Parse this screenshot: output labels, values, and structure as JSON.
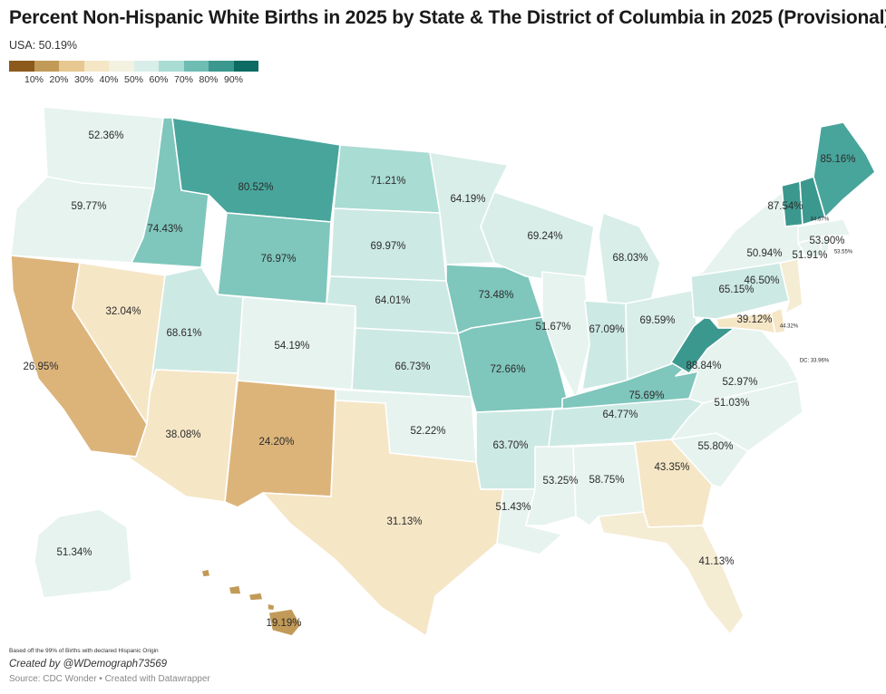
{
  "title": "Percent Non-Hispanic White Births in 2025 by State & The District of Columbia in 2025 (Provisional)",
  "subtitle": "USA: 50.19%",
  "legend": {
    "colors": [
      "#8c5a1c",
      "#c29a58",
      "#e6c890",
      "#f5e6c6",
      "#f3f1e0",
      "#d9eee8",
      "#a9dcd3",
      "#6ebcb2",
      "#3b988e",
      "#0c6b62"
    ],
    "ticks": [
      "10%",
      "20%",
      "30%",
      "40%",
      "50%",
      "60%",
      "70%",
      "80%",
      "90%"
    ]
  },
  "states": [
    {
      "id": "WA",
      "value": "52.36%",
      "color": "#e6f3ee"
    },
    {
      "id": "OR",
      "value": "59.77%",
      "color": "#e6f3ee"
    },
    {
      "id": "CA",
      "value": "26.95%",
      "color": "#dcb47a"
    },
    {
      "id": "NV",
      "value": "32.04%",
      "color": "#f5e6c6"
    },
    {
      "id": "ID",
      "value": "74.43%",
      "color": "#7fc6bc"
    },
    {
      "id": "MT",
      "value": "80.52%",
      "color": "#48a59b"
    },
    {
      "id": "WY",
      "value": "76.97%",
      "color": "#7fc6bc"
    },
    {
      "id": "UT",
      "value": "68.61%",
      "color": "#cde9e3"
    },
    {
      "id": "AZ",
      "value": "38.08%",
      "color": "#f5e6c6"
    },
    {
      "id": "CO",
      "value": "54.19%",
      "color": "#e6f3ee"
    },
    {
      "id": "NM",
      "value": "24.20%",
      "color": "#dcb47a"
    },
    {
      "id": "ND",
      "value": "71.21%",
      "color": "#a9dcd3"
    },
    {
      "id": "SD",
      "value": "69.97%",
      "color": "#cde9e3"
    },
    {
      "id": "NE",
      "value": "64.01%",
      "color": "#cde9e3"
    },
    {
      "id": "KS",
      "value": "66.73%",
      "color": "#cde9e3"
    },
    {
      "id": "OK",
      "value": "52.22%",
      "color": "#e6f3ee"
    },
    {
      "id": "TX",
      "value": "31.13%",
      "color": "#f5e6c6"
    },
    {
      "id": "MN",
      "value": "64.19%",
      "color": "#d9eee8"
    },
    {
      "id": "IA",
      "value": "73.48%",
      "color": "#7fc6bc"
    },
    {
      "id": "MO",
      "value": "72.66%",
      "color": "#7fc6bc"
    },
    {
      "id": "AR",
      "value": "63.70%",
      "color": "#cde9e3"
    },
    {
      "id": "LA",
      "value": "51.43%",
      "color": "#e6f3ee"
    },
    {
      "id": "WI",
      "value": "69.24%",
      "color": "#d9eee8"
    },
    {
      "id": "IL",
      "value": "51.67%",
      "color": "#e6f3ee"
    },
    {
      "id": "MI",
      "value": "68.03%",
      "color": "#d9eee8"
    },
    {
      "id": "IN",
      "value": "67.09%",
      "color": "#cde9e3"
    },
    {
      "id": "OH",
      "value": "69.59%",
      "color": "#d9eee8"
    },
    {
      "id": "KY",
      "value": "75.69%",
      "color": "#7fc6bc"
    },
    {
      "id": "TN",
      "value": "64.77%",
      "color": "#cde9e3"
    },
    {
      "id": "MS",
      "value": "53.25%",
      "color": "#e6f3ee"
    },
    {
      "id": "AL",
      "value": "58.75%",
      "color": "#e6f3ee"
    },
    {
      "id": "GA",
      "value": "43.35%",
      "color": "#f5e6c6"
    },
    {
      "id": "FL",
      "value": "41.13%",
      "color": "#f5ecd4"
    },
    {
      "id": "SC",
      "value": "55.80%",
      "color": "#e6f3ee"
    },
    {
      "id": "NC",
      "value": "51.03%",
      "color": "#e6f3ee"
    },
    {
      "id": "VA",
      "value": "52.97%",
      "color": "#e6f3ee"
    },
    {
      "id": "WV",
      "value": "88.84%",
      "color": "#3b988e"
    },
    {
      "id": "MD",
      "value": "39.12%",
      "color": "#f5e6c6"
    },
    {
      "id": "DE",
      "value": "44.32%",
      "color": "#f5e6c6"
    },
    {
      "id": "DC",
      "value": "DC: 33.96%",
      "color": "#f5e6c6"
    },
    {
      "id": "PA",
      "value": "65.15%",
      "color": "#cde9e3"
    },
    {
      "id": "NJ",
      "value": "46.50%",
      "color": "#f5ecd4"
    },
    {
      "id": "NY",
      "value": "50.94%",
      "color": "#e6f3ee"
    },
    {
      "id": "CT",
      "value": "51.91%",
      "color": "#e6f3ee"
    },
    {
      "id": "RI",
      "value": "53.55%",
      "color": "#e6f3ee"
    },
    {
      "id": "MA",
      "value": "53.90%",
      "color": "#e6f3ee"
    },
    {
      "id": "VT",
      "value": "87.54%",
      "color": "#3b988e"
    },
    {
      "id": "NH",
      "value": "84.67%",
      "color": "#3b988e"
    },
    {
      "id": "ME",
      "value": "85.16%",
      "color": "#48a59b"
    },
    {
      "id": "AK",
      "value": "51.34%",
      "color": "#e6f3ee"
    },
    {
      "id": "HI",
      "value": "19.19%",
      "color": "#c29a58"
    }
  ],
  "footnote": "Based off the 99% of Births with declared Hispanic Origin",
  "credit": "Created by @WDemograph73569",
  "source": "Source: CDC Wonder • Created with Datawrapper"
}
